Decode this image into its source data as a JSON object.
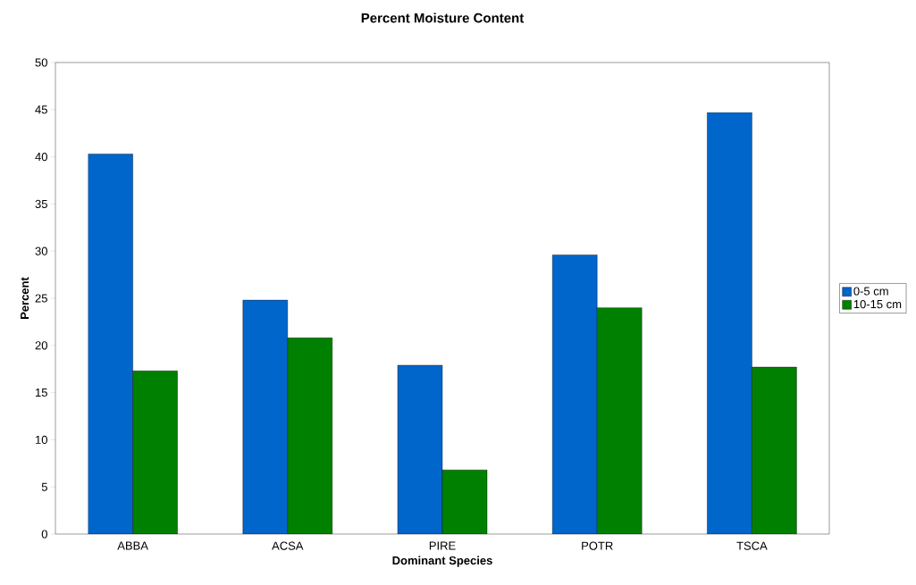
{
  "chart_data": {
    "type": "bar",
    "title": "Percent Moisture Content",
    "xlabel": "Dominant Species",
    "ylabel": "Percent",
    "categories": [
      "ABBA",
      "ACSA",
      "PIRE",
      "POTR",
      "TSCA"
    ],
    "series": [
      {
        "name": "0-5 cm",
        "color": "#0066cc",
        "values": [
          40.3,
          24.8,
          17.9,
          29.6,
          44.7
        ]
      },
      {
        "name": "10-15 cm",
        "color": "#008000",
        "values": [
          17.3,
          20.8,
          6.8,
          24.0,
          17.7
        ]
      }
    ],
    "ylim": [
      0,
      50
    ],
    "yticks": [
      0,
      5,
      10,
      15,
      20,
      25,
      30,
      35,
      40,
      45,
      50
    ],
    "legend": "right"
  }
}
